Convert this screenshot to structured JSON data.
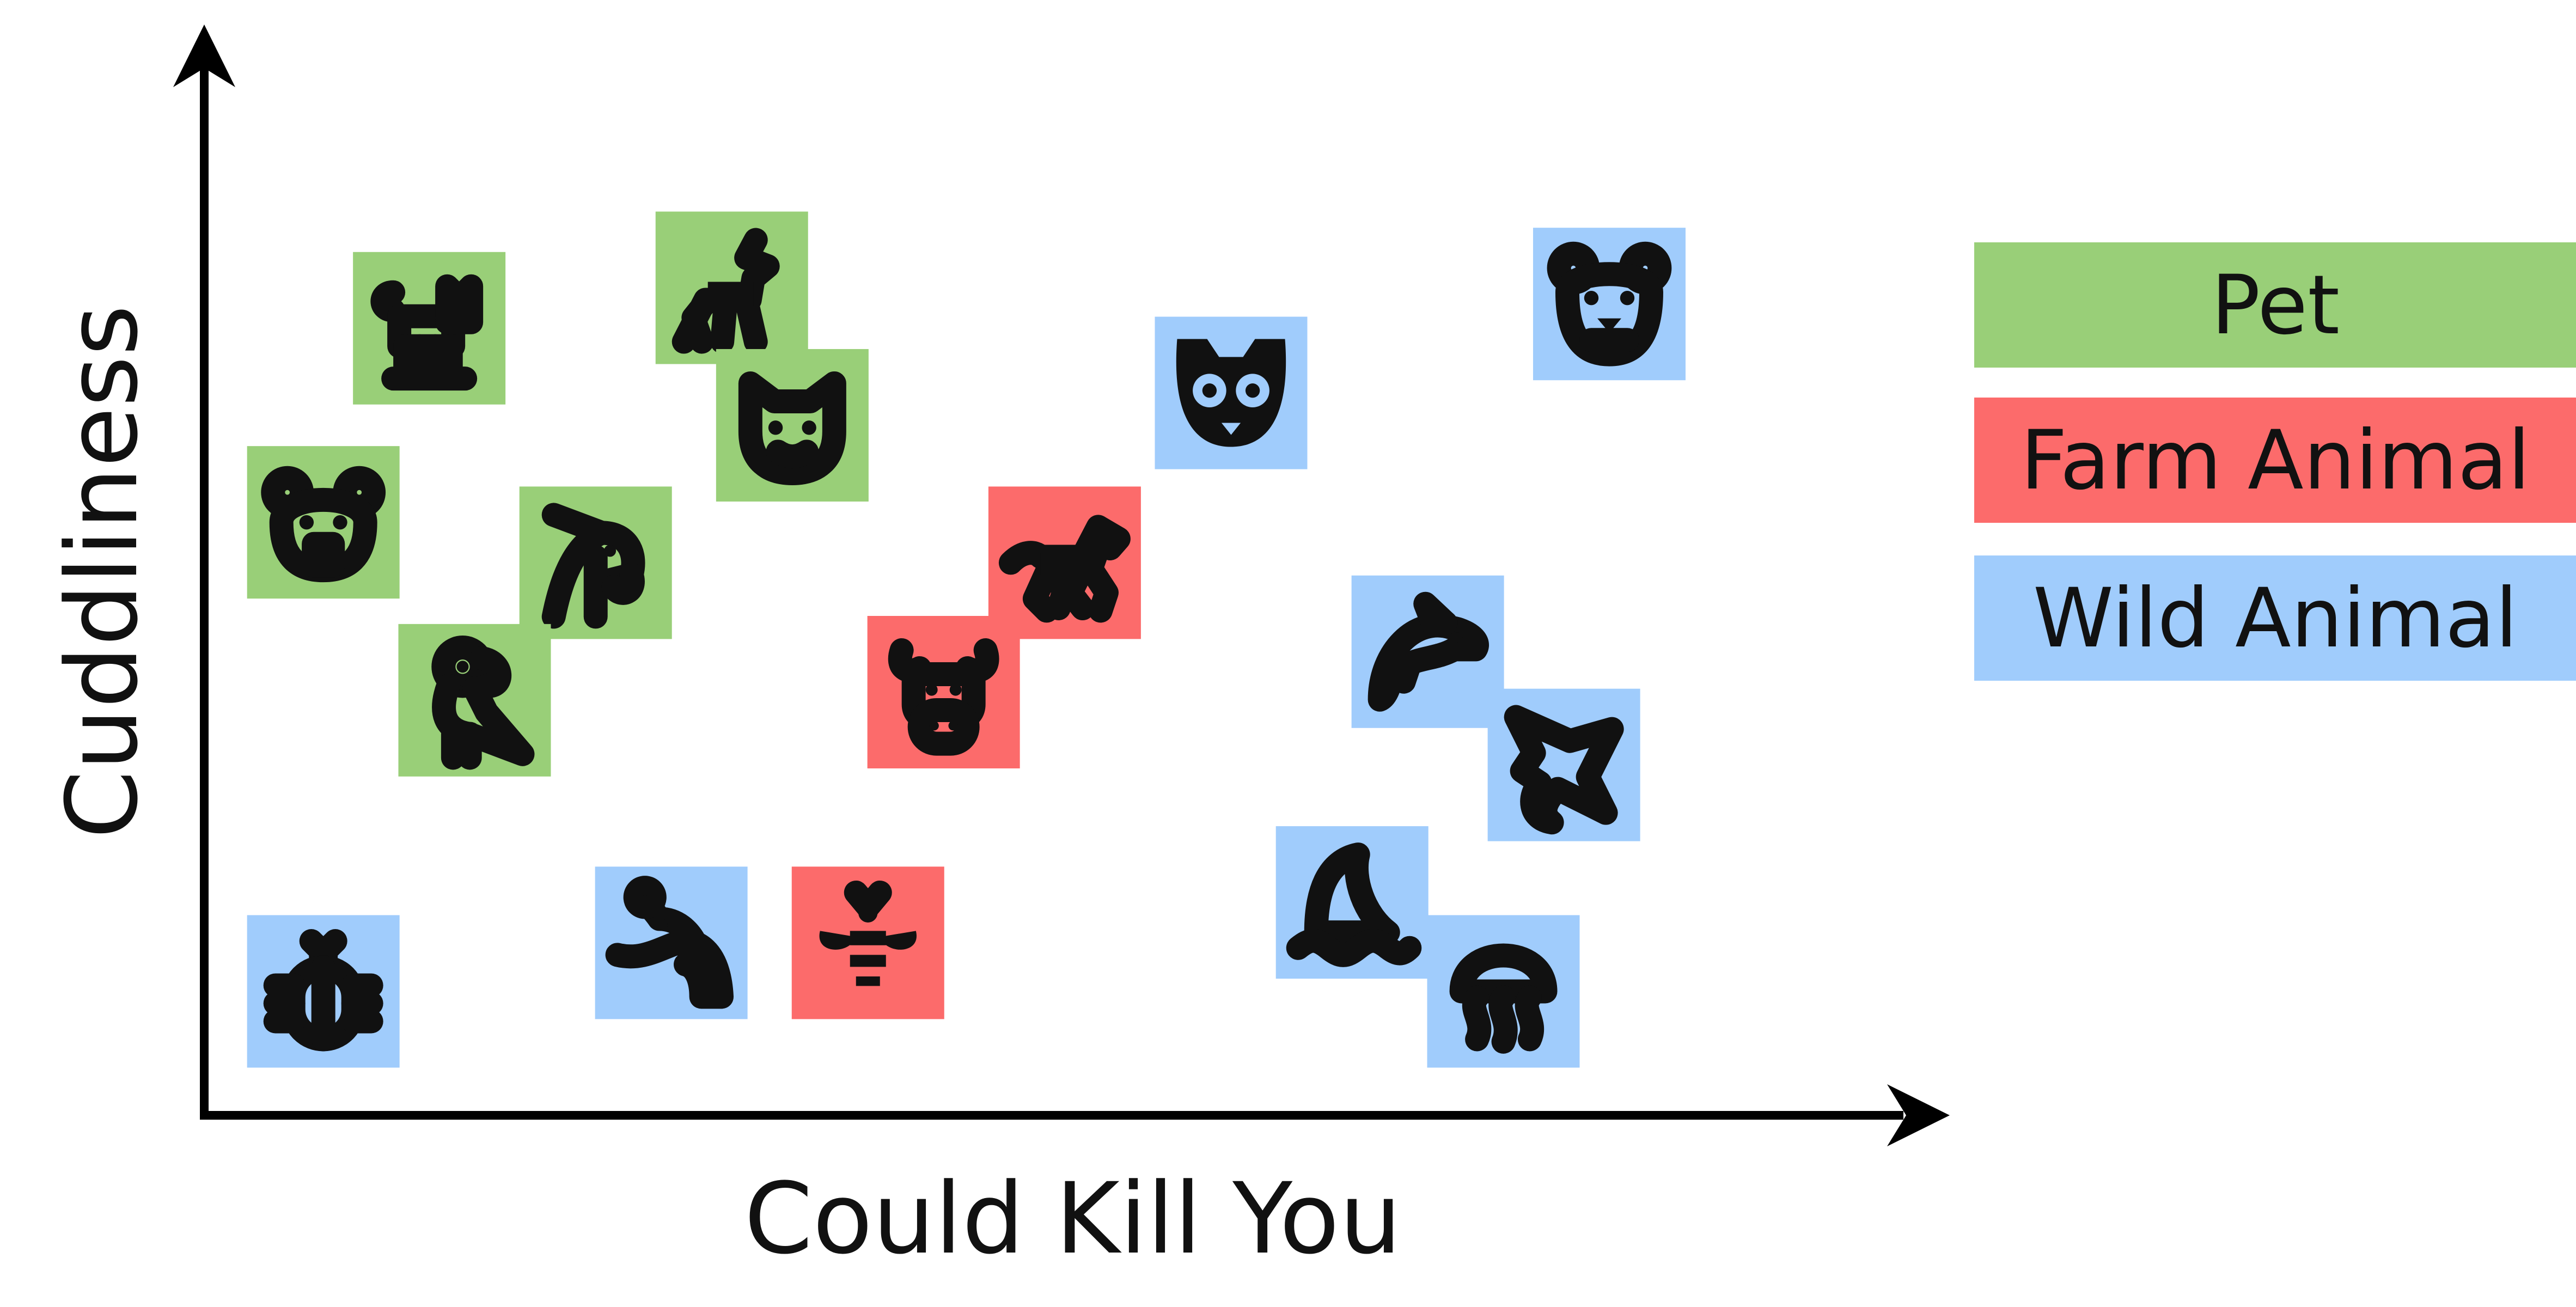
{
  "chart_data": {
    "type": "scatter",
    "title": "",
    "xlabel": "Could Kill You",
    "ylabel": "Cuddliness",
    "xlim": [
      0,
      100
    ],
    "ylim": [
      0,
      100
    ],
    "grid": false,
    "legend_placement": "right",
    "series": [
      {
        "name": "Pet",
        "color": "#99cf78",
        "points": [
          {
            "x": 13,
            "y": 85,
            "icon": "cat-icon"
          },
          {
            "x": 33,
            "y": 90,
            "icon": "llama-icon"
          },
          {
            "x": 37,
            "y": 73,
            "icon": "red-panda-icon"
          },
          {
            "x": 6,
            "y": 61,
            "icon": "hamster-icon"
          },
          {
            "x": 24,
            "y": 56,
            "icon": "cockatoo-icon"
          },
          {
            "x": 16,
            "y": 39,
            "icon": "parrot-icon"
          }
        ]
      },
      {
        "name": "Farm Animal",
        "color": "#fc6b6b",
        "points": [
          {
            "x": 55,
            "y": 56,
            "icon": "horse-icon"
          },
          {
            "x": 47,
            "y": 40,
            "icon": "bull-icon"
          },
          {
            "x": 42,
            "y": 9,
            "icon": "bee-icon"
          }
        ]
      },
      {
        "name": "Wild Animal",
        "color": "#a0ccfc",
        "points": [
          {
            "x": 91,
            "y": 88,
            "icon": "bear-icon"
          },
          {
            "x": 66,
            "y": 77,
            "icon": "lemur-icon"
          },
          {
            "x": 79,
            "y": 45,
            "icon": "dolphin-icon"
          },
          {
            "x": 88,
            "y": 31,
            "icon": "stingray-icon"
          },
          {
            "x": 74,
            "y": 14,
            "icon": "shark-fin-icon"
          },
          {
            "x": 84,
            "y": 3,
            "icon": "jellyfish-icon"
          },
          {
            "x": 29,
            "y": 9,
            "icon": "anteater-icon"
          },
          {
            "x": 6,
            "y": 3,
            "icon": "beetle-icon"
          }
        ]
      }
    ],
    "legend": [
      "Pet",
      "Farm Animal",
      "Wild Animal"
    ]
  }
}
